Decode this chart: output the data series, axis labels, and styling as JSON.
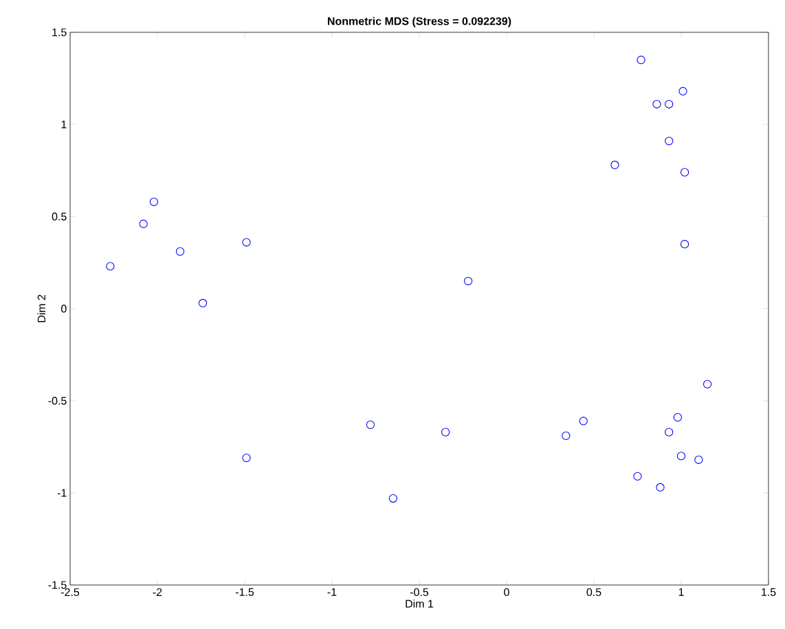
{
  "chart_data": {
    "type": "scatter",
    "title": "Nonmetric MDS (Stress = 0.092239)",
    "xlabel": "Dim 1",
    "ylabel": "Dim 2",
    "x": [
      -2.02,
      -2.08,
      -1.49,
      -1.87,
      -2.27,
      -1.74,
      0.77,
      1.01,
      0.86,
      0.93,
      0.93,
      0.62,
      1.02,
      1.02,
      1.15,
      0.98,
      0.44,
      0.93,
      0.34,
      1.0,
      1.1,
      0.75,
      0.88,
      -0.22,
      -0.78,
      -0.35,
      -1.49,
      -0.65
    ],
    "values": [
      0.58,
      0.46,
      0.36,
      0.31,
      0.23,
      0.03,
      1.35,
      1.18,
      1.11,
      1.11,
      0.91,
      0.78,
      0.74,
      0.35,
      -0.41,
      -0.59,
      -0.61,
      -0.67,
      -0.69,
      -0.8,
      -0.82,
      -0.91,
      -0.97,
      0.15,
      -0.63,
      -0.67,
      -0.81,
      -1.03
    ],
    "color": "#0000ff",
    "marker": "circle",
    "xlim": [
      -2.5,
      1.5
    ],
    "ylim": [
      -1.5,
      1.5
    ],
    "xticks": [
      -2.5,
      -2,
      -1.5,
      -1,
      -0.5,
      0,
      0.5,
      1,
      1.5
    ],
    "yticks": [
      -1.5,
      -1,
      -0.5,
      0,
      0.5,
      1,
      1.5
    ]
  }
}
